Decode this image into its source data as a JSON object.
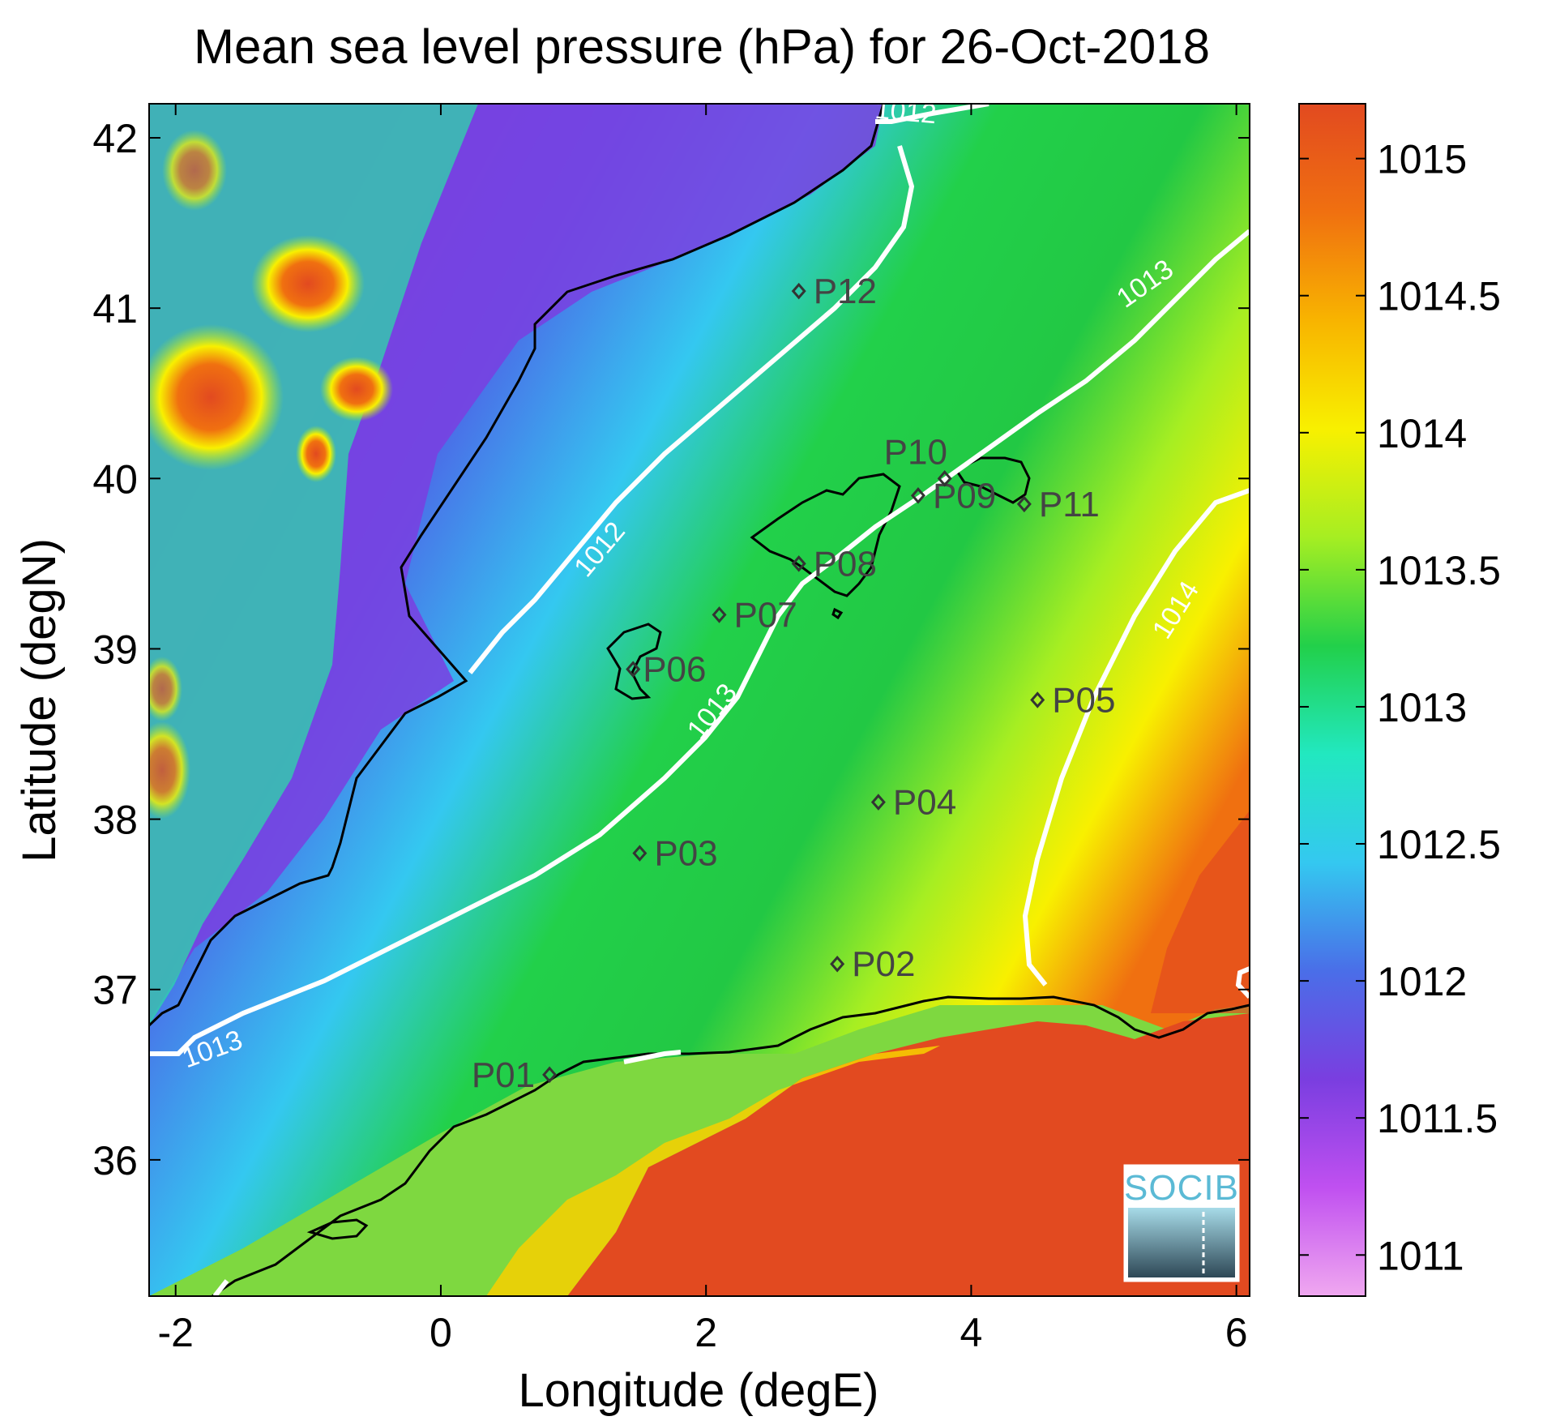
{
  "title": "Mean sea level pressure (hPa) for 26-Oct-2018",
  "xlabel": "Longitude (degE)",
  "ylabel": "Latitude (degN)",
  "logo_text": "SOCIB",
  "chart_data": {
    "type": "heatmap",
    "xlim": [
      -2.2,
      6.1
    ],
    "ylim": [
      35.2,
      42.2
    ],
    "x_ticks": [
      {
        "value": -2,
        "label": "-2"
      },
      {
        "value": 0,
        "label": "0"
      },
      {
        "value": 2,
        "label": "2"
      },
      {
        "value": 4,
        "label": "4"
      },
      {
        "value": 6,
        "label": "6"
      }
    ],
    "y_ticks": [
      {
        "value": 36,
        "label": "36"
      },
      {
        "value": 37,
        "label": "37"
      },
      {
        "value": 38,
        "label": "38"
      },
      {
        "value": 39,
        "label": "39"
      },
      {
        "value": 40,
        "label": "40"
      },
      {
        "value": 41,
        "label": "41"
      },
      {
        "value": 42,
        "label": "42"
      }
    ],
    "colorbar": {
      "range": [
        1010.85,
        1015.2
      ],
      "ticks": [
        {
          "value": 1011,
          "label": "1011"
        },
        {
          "value": 1011.5,
          "label": "1011.5"
        },
        {
          "value": 1012,
          "label": "1012"
        },
        {
          "value": 1012.5,
          "label": "1012.5"
        },
        {
          "value": 1013,
          "label": "1013"
        },
        {
          "value": 1013.5,
          "label": "1013.5"
        },
        {
          "value": 1014,
          "label": "1014"
        },
        {
          "value": 1014.5,
          "label": "1014.5"
        },
        {
          "value": 1015,
          "label": "1015"
        }
      ],
      "colors": [
        "#f0a8f0",
        "#c050f0",
        "#7a3ee0",
        "#4a6ee8",
        "#34c8f0",
        "#22e8c0",
        "#22d04a",
        "#a6ee22",
        "#f8f000",
        "#f8b400",
        "#f07010",
        "#e24a20"
      ]
    },
    "contour_labels": [
      {
        "value": "1012",
        "lon": 3.5,
        "lat": 42.1,
        "angle": 5
      },
      {
        "value": "1012",
        "lon": 1.25,
        "lat": 39.55,
        "angle": -50
      },
      {
        "value": "1013",
        "lon": 5.35,
        "lat": 41.1,
        "angle": -35
      },
      {
        "value": "1013",
        "lon": 2.1,
        "lat": 38.6,
        "angle": -52
      },
      {
        "value": "1013",
        "lon": -1.7,
        "lat": 36.6,
        "angle": -20
      },
      {
        "value": "1014",
        "lon": 5.6,
        "lat": 39.2,
        "angle": -58
      }
    ],
    "stations": [
      {
        "name": "P01",
        "lon": 0.82,
        "lat": 36.5
      },
      {
        "name": "P02",
        "lon": 2.99,
        "lat": 37.15
      },
      {
        "name": "P03",
        "lon": 1.5,
        "lat": 37.8
      },
      {
        "name": "P04",
        "lon": 3.3,
        "lat": 38.1
      },
      {
        "name": "P05",
        "lon": 4.5,
        "lat": 38.7
      },
      {
        "name": "P06",
        "lon": 1.45,
        "lat": 38.88
      },
      {
        "name": "P07",
        "lon": 2.1,
        "lat": 39.2
      },
      {
        "name": "P08",
        "lon": 2.7,
        "lat": 39.5
      },
      {
        "name": "P09",
        "lon": 3.6,
        "lat": 39.9
      },
      {
        "name": "P10",
        "lon": 3.8,
        "lat": 40.0
      },
      {
        "name": "P11",
        "lon": 4.4,
        "lat": 39.85
      },
      {
        "name": "P12",
        "lon": 2.7,
        "lat": 41.1
      }
    ]
  }
}
